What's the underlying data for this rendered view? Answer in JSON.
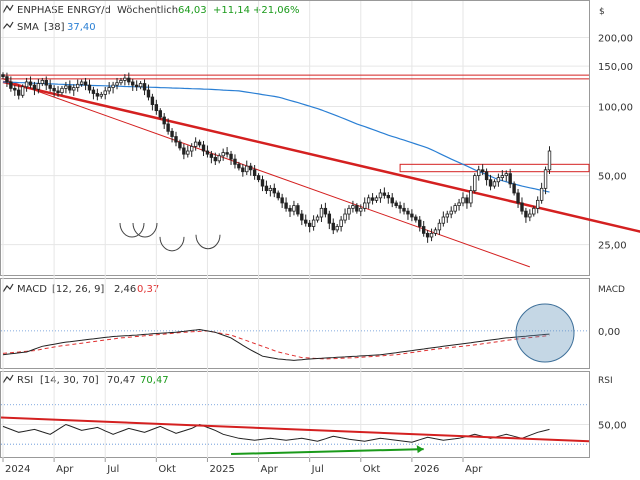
{
  "chart_data": {
    "type": "line",
    "currency": "$",
    "x_ticks": [
      "2024",
      "Apr",
      "Jul",
      "Okt",
      "2025",
      "Apr",
      "Jul",
      "Okt",
      "2026",
      "Apr"
    ],
    "panels": [
      {
        "id": "price",
        "type": "candlestick",
        "legend": {
          "name": "ENPHASE ENRGY/d",
          "interval": "Wöchentlich",
          "last": "64,03",
          "change": "+11,14",
          "change_pct": "+21,06%",
          "sma_label": "SMA",
          "sma_period": "[38]",
          "sma_value": "37,40"
        },
        "scale": "log",
        "y_ticks": [
          "200,00",
          "150,00",
          "100,00",
          "50,00",
          "25,00"
        ],
        "y_tick_values": [
          200,
          150,
          100,
          50,
          25
        ],
        "ylim": [
          19,
          220
        ],
        "closes": [
          135,
          128,
          120,
          118,
          112,
          122,
          128,
          124,
          119,
          126,
          130,
          124,
          120,
          117,
          115,
          120,
          123,
          118,
          121,
          125,
          128,
          124,
          118,
          114,
          111,
          113,
          117,
          121,
          124,
          127,
          130,
          133,
          128,
          124,
          122,
          126,
          118,
          110,
          102,
          96,
          90,
          84,
          78,
          74,
          70,
          66,
          62,
          64,
          67,
          70,
          68,
          64,
          62,
          60,
          58,
          61,
          63,
          62,
          59,
          56,
          54,
          52,
          55,
          53,
          50,
          48,
          45,
          43,
          44,
          42,
          40,
          38,
          36,
          35,
          37,
          34,
          32,
          31,
          30,
          32,
          33,
          36,
          34,
          31,
          29,
          30,
          32,
          34,
          36,
          37,
          35,
          36,
          38,
          40,
          39,
          40,
          42,
          41,
          40,
          38,
          37,
          36,
          35,
          34,
          33,
          32,
          30,
          28,
          27,
          28,
          29,
          31,
          33,
          34,
          35,
          37,
          38,
          40,
          38,
          43,
          50,
          53,
          52,
          48,
          45,
          47,
          49,
          50,
          51,
          46,
          42,
          38,
          35,
          33,
          34,
          36,
          39,
          44,
          53,
          64
        ],
        "sma_points": [
          [
            0,
            128
          ],
          [
            20,
            124
          ],
          [
            40,
            121
          ],
          [
            52,
            119
          ],
          [
            60,
            117
          ],
          [
            70,
            110
          ],
          [
            80,
            98
          ],
          [
            90,
            84
          ],
          [
            98,
            75
          ],
          [
            108,
            66
          ],
          [
            114,
            59
          ],
          [
            120,
            53
          ],
          [
            126,
            48
          ],
          [
            132,
            45
          ],
          [
            140,
            42
          ],
          [
            150,
            40
          ],
          [
            160,
            38.8
          ],
          [
            169,
            37.5
          ],
          [
            173,
            38.6
          ],
          [
            177,
            38.4
          ],
          [
            181,
            37.2
          ],
          [
            185,
            37.4
          ]
        ],
        "support_levels": [
          137,
          132
        ],
        "resistance_zone": [
          56,
          52
        ]
      },
      {
        "id": "macd",
        "type": "line",
        "legend": {
          "name": "MACD",
          "params": "[12, 26, 9]",
          "macd_value": "2,46",
          "signal_value": "0,37"
        },
        "right_title": "MACD",
        "y_ticks": [
          "0,00"
        ],
        "y_tick_values": [
          0
        ],
        "ylim": [
          -25,
          22
        ],
        "macd_points": [
          [
            0,
            -17
          ],
          [
            6,
            -15
          ],
          [
            10,
            -11
          ],
          [
            16,
            -8
          ],
          [
            22,
            -6
          ],
          [
            28,
            -4
          ],
          [
            34,
            -3
          ],
          [
            38,
            -2
          ],
          [
            44,
            -1
          ],
          [
            50,
            1
          ],
          [
            54,
            -1
          ],
          [
            58,
            -5
          ],
          [
            62,
            -12
          ],
          [
            66,
            -18
          ],
          [
            70,
            -20
          ],
          [
            74,
            -21
          ],
          [
            78,
            -20
          ],
          [
            84,
            -19
          ],
          [
            90,
            -18
          ],
          [
            96,
            -17
          ],
          [
            104,
            -14
          ],
          [
            112,
            -11
          ],
          [
            120,
            -8
          ],
          [
            128,
            -5
          ],
          [
            136,
            -3
          ],
          [
            144,
            -1
          ],
          [
            150,
            0
          ],
          [
            156,
            -2
          ],
          [
            162,
            -4
          ],
          [
            168,
            3
          ],
          [
            172,
            6
          ],
          [
            176,
            4
          ],
          [
            180,
            -2
          ],
          [
            183,
            0
          ],
          [
            185,
            2.5
          ]
        ],
        "signal_points": [
          [
            0,
            -16
          ],
          [
            8,
            -14
          ],
          [
            14,
            -11
          ],
          [
            22,
            -8
          ],
          [
            30,
            -5
          ],
          [
            38,
            -3
          ],
          [
            46,
            -1
          ],
          [
            52,
            0
          ],
          [
            58,
            -3
          ],
          [
            64,
            -9
          ],
          [
            70,
            -15
          ],
          [
            76,
            -19
          ],
          [
            82,
            -20
          ],
          [
            90,
            -19
          ],
          [
            100,
            -17
          ],
          [
            110,
            -13
          ],
          [
            120,
            -10
          ],
          [
            130,
            -6
          ],
          [
            140,
            -3
          ],
          [
            150,
            -1
          ],
          [
            158,
            -2
          ],
          [
            166,
            0
          ],
          [
            172,
            3
          ],
          [
            178,
            2
          ],
          [
            182,
            0.6
          ],
          [
            185,
            0.4
          ]
        ]
      },
      {
        "id": "rsi",
        "type": "line",
        "legend": {
          "name": "RSI",
          "params": "[14, 30, 70]",
          "rsi_value": "70,47",
          "signal_value": "70,47"
        },
        "right_title": "RSI",
        "y_ticks": [
          "50,00"
        ],
        "y_tick_values": [
          50
        ],
        "ylim": [
          18,
          88
        ],
        "bands": [
          70,
          30
        ],
        "rsi_points": [
          [
            0,
            48
          ],
          [
            4,
            42
          ],
          [
            8,
            45
          ],
          [
            12,
            40
          ],
          [
            16,
            50
          ],
          [
            20,
            44
          ],
          [
            24,
            47
          ],
          [
            28,
            40
          ],
          [
            32,
            46
          ],
          [
            36,
            42
          ],
          [
            40,
            48
          ],
          [
            44,
            41
          ],
          [
            48,
            46
          ],
          [
            50,
            50
          ],
          [
            54,
            44
          ],
          [
            56,
            40
          ],
          [
            60,
            36
          ],
          [
            64,
            34
          ],
          [
            68,
            36
          ],
          [
            72,
            34
          ],
          [
            76,
            36
          ],
          [
            80,
            33
          ],
          [
            84,
            38
          ],
          [
            88,
            35
          ],
          [
            92,
            33
          ],
          [
            96,
            36
          ],
          [
            100,
            34
          ],
          [
            104,
            32
          ],
          [
            108,
            37
          ],
          [
            112,
            34
          ],
          [
            116,
            36
          ],
          [
            120,
            40
          ],
          [
            124,
            36
          ],
          [
            128,
            40
          ],
          [
            132,
            36
          ],
          [
            136,
            42
          ],
          [
            140,
            46
          ],
          [
            142,
            37
          ],
          [
            144,
            32
          ],
          [
            146,
            33
          ],
          [
            150,
            40
          ],
          [
            154,
            46
          ],
          [
            156,
            52
          ],
          [
            160,
            56
          ],
          [
            162,
            66
          ],
          [
            164,
            60
          ],
          [
            166,
            62
          ],
          [
            168,
            56
          ],
          [
            170,
            52
          ],
          [
            174,
            47
          ],
          [
            178,
            38
          ],
          [
            182,
            50
          ],
          [
            184,
            60
          ],
          [
            185,
            70.5
          ]
        ]
      }
    ]
  }
}
